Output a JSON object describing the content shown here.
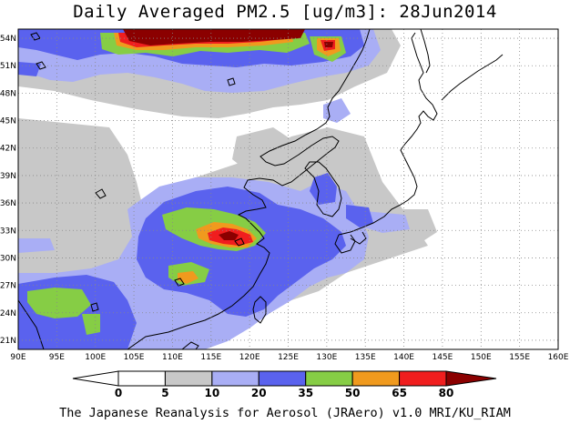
{
  "title": "Daily Averaged PM2.5 [ug/m3]: 28Jun2014",
  "footer": "The Japanese Reanalysis for Aerosol (JRAero) v1.0 MRI/KU_RIAM",
  "colors": {
    "bin_0_5": "#ffffff",
    "bin_5_10": "#c8c8c8",
    "bin_10_20": "#a9aef5",
    "bin_20_35": "#5a62ee",
    "bin_35_50": "#86cd45",
    "bin_50_65": "#f09a1e",
    "bin_65_80": "#f01e1e",
    "bin_80_plus": "#8b0000"
  },
  "chart_data": {
    "type": "heatmap",
    "title": "Daily Averaged PM2.5 [ug/m3]: 28Jun2014",
    "xlim": [
      90,
      160
    ],
    "ylim": [
      20,
      55
    ],
    "x_ticks": [
      "90E",
      "95E",
      "100E",
      "105E",
      "110E",
      "115E",
      "120E",
      "125E",
      "130E",
      "135E",
      "140E",
      "145E",
      "150E",
      "155E",
      "160E"
    ],
    "y_ticks": [
      "21N",
      "24N",
      "27N",
      "30N",
      "33N",
      "36N",
      "39N",
      "42N",
      "45N",
      "48N",
      "51N",
      "54N"
    ],
    "grid": true,
    "colorbar": {
      "position": "bottom",
      "labels": [
        "0",
        "5",
        "10",
        "20",
        "35",
        "50",
        "65",
        "80"
      ]
    }
  }
}
